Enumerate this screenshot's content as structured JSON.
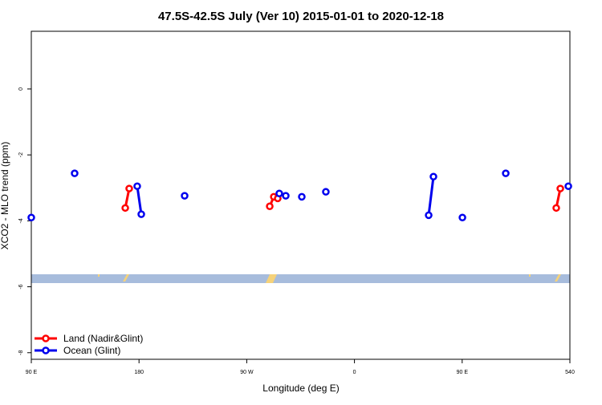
{
  "chart_data": {
    "type": "line",
    "title": "47.5S-42.5S July (Ver 10)   2015-01-01 to 2020-12-18",
    "x_label": "Longitude (deg E)",
    "y_label": "XCO2 - MLO trend (ppm)",
    "xlim": [
      90,
      540
    ],
    "xticks": [
      {
        "value": 90,
        "label": "90 E"
      },
      180,
      {
        "value": 270,
        "label": "90 W"
      },
      {
        "value": 360,
        "label": "0"
      },
      {
        "value": 450,
        "label": "90 E"
      },
      540
    ],
    "ylim": [
      -8.2,
      1.75
    ],
    "yticks": [
      -8,
      -6,
      -4,
      -2,
      0
    ],
    "legend": "bottom-left",
    "series": [
      {
        "name": "Land (Nadir&Glint)",
        "color": "#ff0000",
        "x": [
          168.5,
          171.8,
          null,
          289.2,
          292.6,
          295.9,
          null,
          528.6,
          532.0
        ],
        "values": [
          -3.61,
          -3.02,
          null,
          -3.56,
          -3.27,
          -3.32,
          null,
          -3.61,
          -3.02
        ]
      },
      {
        "name": "Ocean (Glint)",
        "color": "#0000ee",
        "x": [
          90,
          null,
          126.2,
          null,
          178.5,
          181.9,
          null,
          218.1,
          null,
          297.2,
          null,
          302.6,
          null,
          316.0,
          null,
          336.1,
          null,
          422.0,
          426.0,
          null,
          450.2,
          null,
          486.4,
          null,
          538.7
        ],
        "values": [
          -3.9,
          null,
          -2.56,
          null,
          -2.95,
          -3.8,
          null,
          -3.24,
          null,
          -3.17,
          null,
          -3.24,
          null,
          -3.27,
          null,
          -3.12,
          null,
          -3.83,
          -2.66,
          null,
          -3.9,
          null,
          -2.56,
          null,
          -2.95
        ]
      }
    ]
  }
}
